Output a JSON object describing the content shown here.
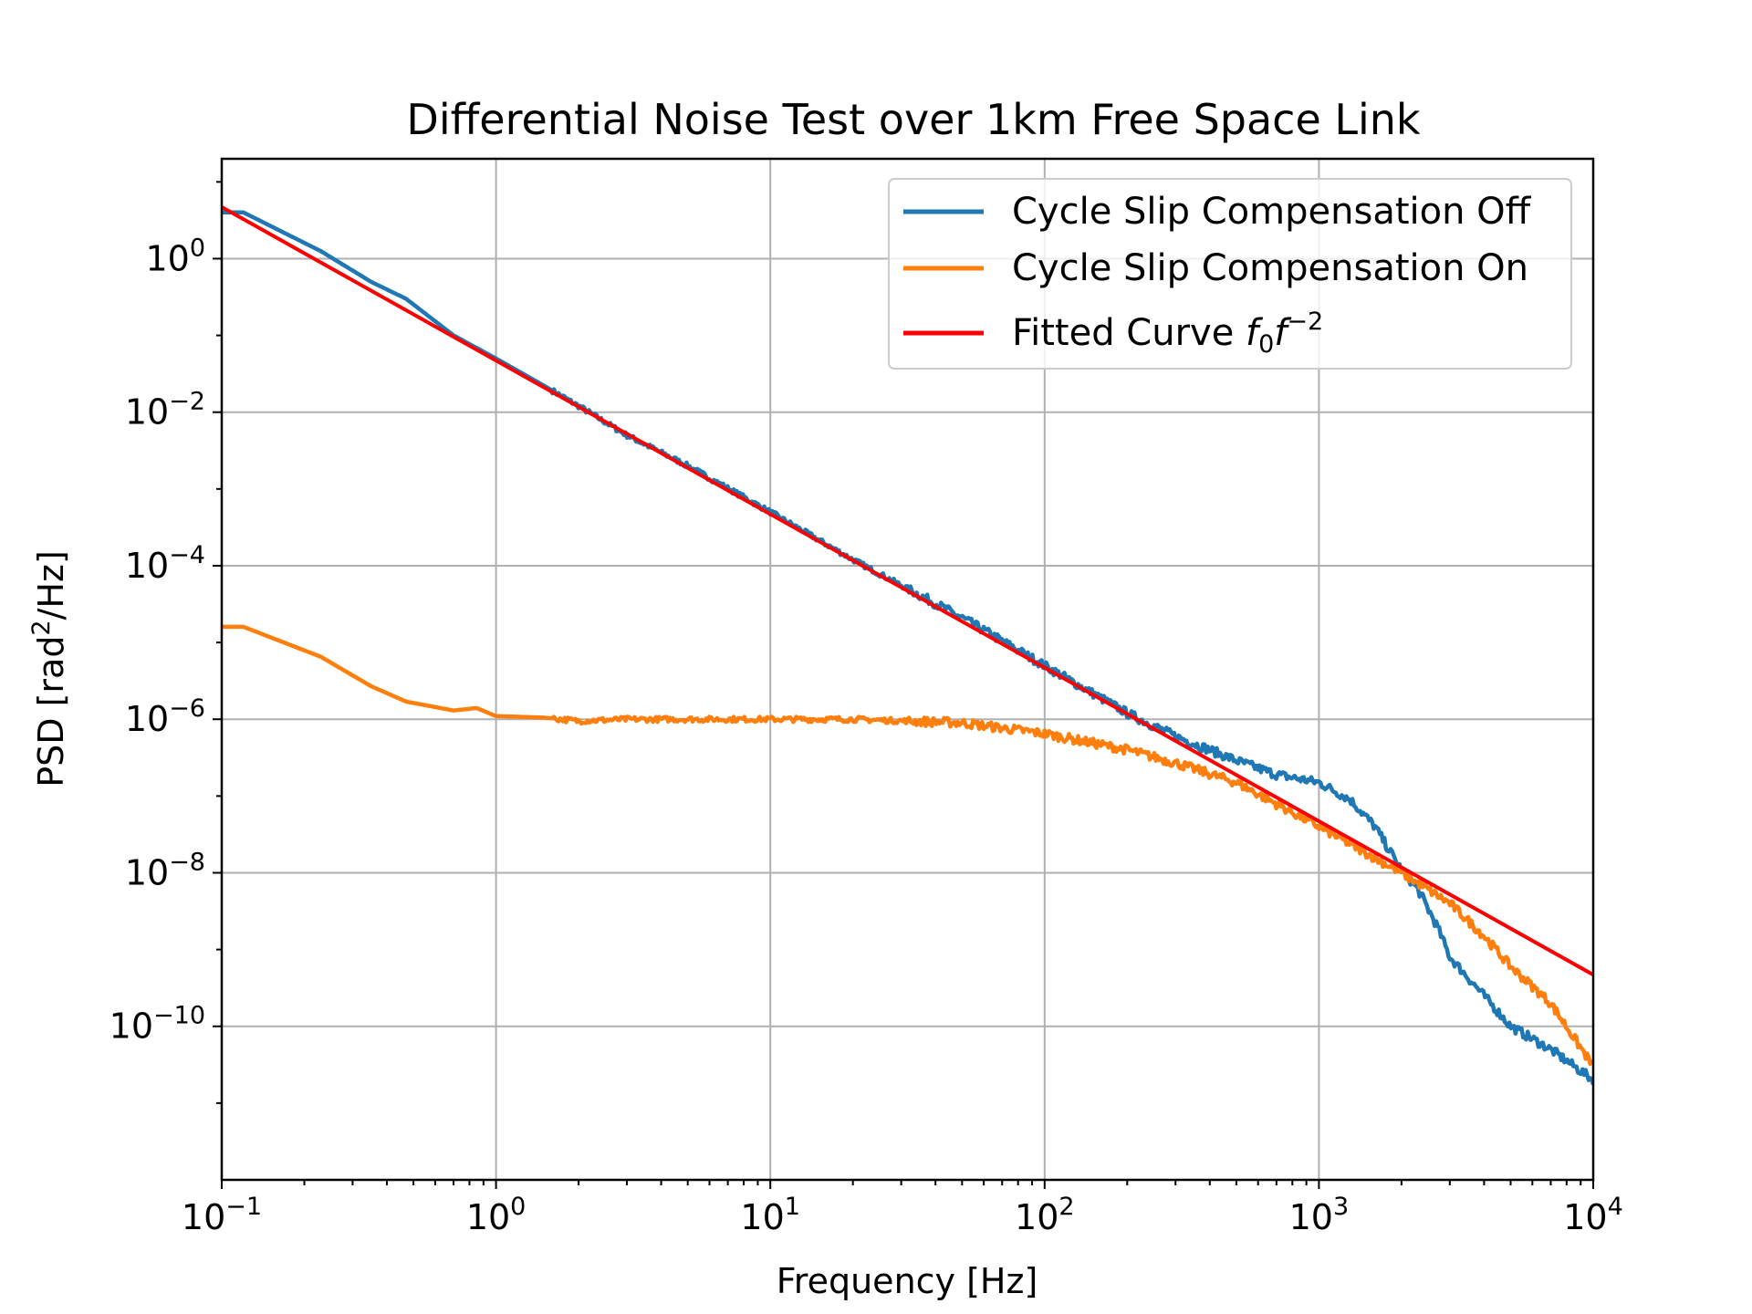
{
  "chart_data": {
    "type": "line",
    "title": "Differential Noise Test over 1km Free Space Link",
    "xlabel": "Frequency [Hz]",
    "ylabel": "PSD [rad²/Hz]",
    "xscale": "log",
    "yscale": "log",
    "xlim": [
      0.1,
      10000
    ],
    "ylim": [
      1e-12,
      20
    ],
    "grid": true,
    "legend_position": "top-right",
    "x_ticks": [
      {
        "value": 0.1,
        "base": "10",
        "exp": "−1"
      },
      {
        "value": 1,
        "base": "10",
        "exp": "0"
      },
      {
        "value": 10,
        "base": "10",
        "exp": "1"
      },
      {
        "value": 100,
        "base": "10",
        "exp": "2"
      },
      {
        "value": 1000,
        "base": "10",
        "exp": "3"
      },
      {
        "value": 10000,
        "base": "10",
        "exp": "4"
      }
    ],
    "y_ticks": [
      {
        "value": 1,
        "base": "10",
        "exp": "0"
      },
      {
        "value": 0.01,
        "base": "10",
        "exp": "−2"
      },
      {
        "value": 0.0001,
        "base": "10",
        "exp": "−4"
      },
      {
        "value": 1e-06,
        "base": "10",
        "exp": "−6"
      },
      {
        "value": 1e-08,
        "base": "10",
        "exp": "−8"
      },
      {
        "value": 1e-10,
        "base": "10",
        "exp": "−10"
      }
    ],
    "series": [
      {
        "name": "Cycle Slip Compensation Off",
        "color": "#1f77b4",
        "x": [
          0.1,
          0.12,
          0.23,
          0.35,
          0.47,
          0.7,
          1.0,
          1.5,
          2.0,
          3.0,
          5.0,
          10,
          20,
          50,
          100,
          200,
          300,
          500,
          700,
          1000,
          1300,
          1600,
          1800,
          2000,
          2300,
          2700,
          3000,
          4000,
          5000,
          7000,
          10000
        ],
        "y": [
          4.0,
          4.0,
          1.25,
          0.5,
          0.3,
          0.1,
          0.05,
          0.022,
          0.012,
          0.005,
          0.002,
          0.0005,
          0.00012,
          2.1e-05,
          5e-06,
          1.2e-06,
          6e-07,
          2.9e-07,
          1.9e-07,
          1.5e-07,
          9e-08,
          4e-08,
          2e-08,
          1.1e-08,
          6e-09,
          2e-09,
          8e-10,
          2.5e-10,
          1e-10,
          5e-11,
          2e-11
        ]
      },
      {
        "name": "Cycle Slip Compensation On",
        "color": "#ff7f0e",
        "x": [
          0.1,
          0.12,
          0.23,
          0.35,
          0.47,
          0.7,
          0.85,
          1.0,
          1.5,
          2.0,
          3.0,
          5.0,
          10,
          20,
          50,
          100,
          200,
          300,
          500,
          1000,
          2000,
          3000,
          4000,
          5000,
          7000,
          10000
        ],
        "y": [
          1.6e-05,
          1.6e-05,
          6.5e-06,
          2.7e-06,
          1.7e-06,
          1.3e-06,
          1.4e-06,
          1.1e-06,
          1.05e-06,
          9.5e-07,
          1e-06,
          1e-06,
          1e-06,
          1e-06,
          9e-07,
          6.5e-07,
          4e-07,
          2.7e-07,
          1.5e-07,
          4e-08,
          1e-08,
          4e-09,
          1.5e-09,
          6e-10,
          2e-10,
          3e-11
        ]
      },
      {
        "name": "Fitted Curve f₀f⁻²",
        "color": "#ff0000",
        "x": [
          0.1,
          10000
        ],
        "y": [
          4.7,
          4.7e-10
        ]
      }
    ]
  },
  "legend": {
    "items": [
      {
        "text": "Cycle Slip Compensation Off",
        "color": "#1f77b4"
      },
      {
        "text": "Cycle Slip Compensation On",
        "color": "#ff7f0e"
      },
      {
        "text": "Fitted Curve ",
        "color": "#ff0000",
        "math_f": "f",
        "math_sub": "0",
        "math_f2": "f",
        "math_sup": "−2"
      }
    ]
  }
}
